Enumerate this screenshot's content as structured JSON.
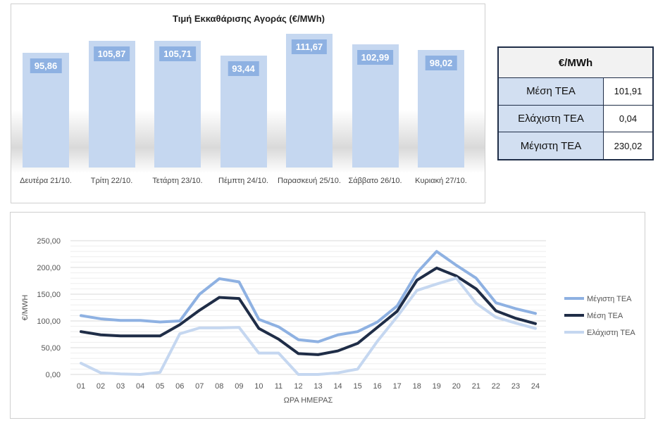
{
  "bar_chart": {
    "chart_data": {
      "type": "bar",
      "title": "Τιμή Εκκαθάρισης Αγοράς (€/MWh)",
      "categories": [
        "Δευτέρα 21/10.",
        "Τρίτη 22/10.",
        "Τετάρτη 23/10.",
        "Πέμπτη 24/10.",
        "Παρασκευή 25/10.",
        "Σάββατο 26/10.",
        "Κυριακή 27/10."
      ],
      "values": [
        95.86,
        105.87,
        105.71,
        93.44,
        111.67,
        102.99,
        98.02
      ],
      "value_labels": [
        "95,86",
        "105,87",
        "105,71",
        "93,44",
        "111,67",
        "102,99",
        "98,02"
      ],
      "bar_color": "#c5d7f0",
      "label_color": "#8eb1e2"
    }
  },
  "stats_table": {
    "header": "€/MWh",
    "rows": [
      {
        "label": "Μέση ΤΕΑ",
        "value": "101,91"
      },
      {
        "label": "Ελάχιστη ΤΕΑ",
        "value": "0,04"
      },
      {
        "label": "Μέγιστη ΤΕΑ",
        "value": "230,02"
      }
    ]
  },
  "line_chart": {
    "chart_data": {
      "type": "line",
      "xlabel": "ΩΡΑ ΗΜΕΡΑΣ",
      "ylabel": "€/MWH",
      "ylim": [
        0,
        250
      ],
      "yticks": [
        "0,00",
        "50,00",
        "100,00",
        "150,00",
        "200,00",
        "250,00"
      ],
      "categories": [
        "01",
        "02",
        "03",
        "04",
        "05",
        "06",
        "07",
        "08",
        "09",
        "10",
        "11",
        "12",
        "13",
        "14",
        "15",
        "16",
        "17",
        "18",
        "19",
        "20",
        "21",
        "22",
        "23",
        "24"
      ],
      "grid": true,
      "legend_position": "right",
      "series": [
        {
          "name": "Μέγιστη ΤΕΑ",
          "color": "#8eb1e2",
          "values": [
            110,
            104,
            101,
            101,
            98,
            100,
            150,
            179,
            173,
            103,
            89,
            65,
            61,
            74,
            80,
            98,
            128,
            190,
            230,
            204,
            180,
            134,
            123,
            114
          ]
        },
        {
          "name": "Μέση ΤΕΑ",
          "color": "#1f2d47",
          "values": [
            80,
            74,
            72,
            72,
            72,
            93,
            120,
            144,
            142,
            86,
            66,
            39,
            37,
            44,
            58,
            88,
            118,
            176,
            199,
            184,
            160,
            119,
            105,
            95
          ]
        },
        {
          "name": "Ελάχιστη ΤΕΑ",
          "color": "#c5d7f0",
          "values": [
            21,
            3,
            1,
            0,
            4,
            76,
            87,
            87,
            88,
            40,
            40,
            0,
            0,
            3,
            10,
            62,
            108,
            157,
            169,
            180,
            133,
            107,
            96,
            86
          ]
        }
      ]
    }
  }
}
